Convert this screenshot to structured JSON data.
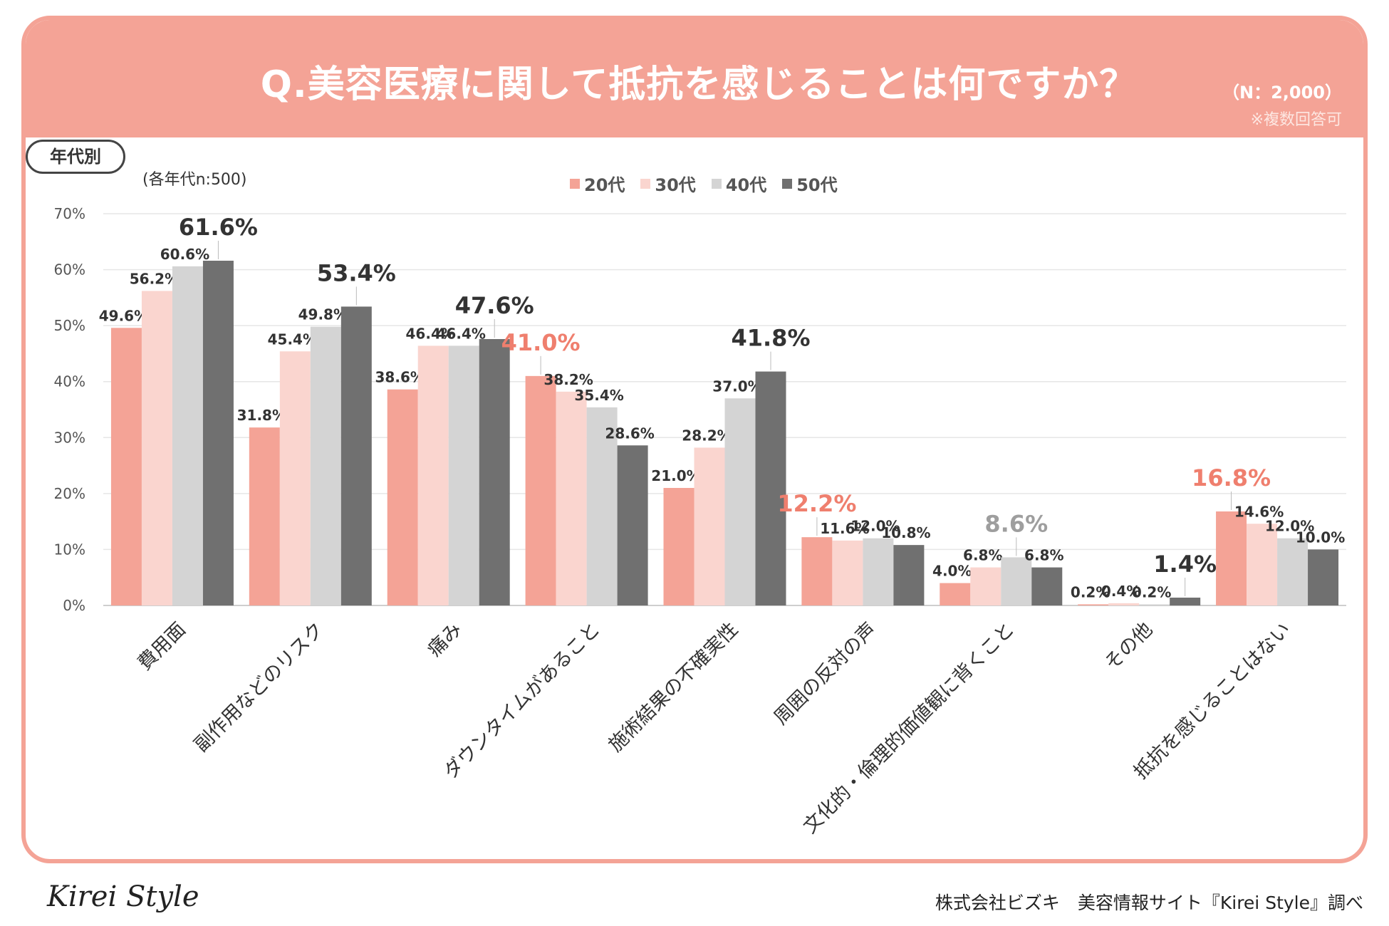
{
  "header": {
    "title": "Q.美容医療に関して抵抗を感じることは何ですか？",
    "sample": "（N：2,000）",
    "note": "※複数回答可"
  },
  "filter": {
    "label": "年代別",
    "sample_note": "(各年代n:500)"
  },
  "colors": {
    "header_bg": "#f4a396",
    "s20": "#f4a396",
    "s30": "#fad5cf",
    "s40": "#d4d4d4",
    "s50": "#707070",
    "highlight": "#ef7f6e"
  },
  "footer": {
    "logo": "Kirei Style",
    "credit": "株式会社ビズキ　美容情報サイト『Kirei Style』調べ"
  },
  "chart_data": {
    "type": "bar",
    "title": "Q.美容医療に関して抵抗を感じることは何ですか？",
    "ylim": [
      0,
      70
    ],
    "yticks": [
      "0%",
      "10%",
      "20%",
      "30%",
      "40%",
      "50%",
      "60%",
      "70%"
    ],
    "categories": [
      "費用面",
      "副作用などのリスク",
      "痛み",
      "ダウンタイムがあること",
      "施術結果の不確実性",
      "周囲の反対の声",
      "文化的・倫理的価値観に背くこと",
      "その他",
      "抵抗を感じることはない"
    ],
    "series": [
      {
        "name": "20代",
        "values": [
          49.6,
          31.8,
          38.6,
          41.0,
          21.0,
          12.2,
          4.0,
          0.2,
          16.8
        ],
        "labels": [
          "49.6%",
          "31.8%",
          "38.6%",
          "41.0%",
          "21.0%",
          "12.2%",
          "4.0%",
          "0.2%",
          "16.8%"
        ]
      },
      {
        "name": "30代",
        "values": [
          56.2,
          45.4,
          46.4,
          38.2,
          28.2,
          11.6,
          6.8,
          0.4,
          14.6
        ],
        "labels": [
          "56.2%",
          "45.4%",
          "46.4%",
          "38.2%",
          "28.2%",
          "11.6%",
          "6.8%",
          "0.4%",
          "14.6%"
        ]
      },
      {
        "name": "40代",
        "values": [
          60.6,
          49.8,
          46.4,
          35.4,
          37.0,
          12.0,
          8.6,
          0.2,
          12.0
        ],
        "labels": [
          "60.6%",
          "49.8%",
          "46.4%",
          "35.4%",
          "37.0%",
          "12.0%",
          "8.6%",
          "0.2%",
          "12.0%"
        ]
      },
      {
        "name": "50代",
        "values": [
          61.6,
          53.4,
          47.6,
          28.6,
          41.8,
          10.8,
          6.8,
          1.4,
          10.0
        ],
        "labels": [
          "61.6%",
          "53.4%",
          "47.6%",
          "28.6%",
          "41.8%",
          "10.8%",
          "6.8%",
          "1.4%",
          "10.0%"
        ]
      }
    ],
    "highlights": [
      {
        "category": 0,
        "series": 3
      },
      {
        "category": 1,
        "series": 3
      },
      {
        "category": 2,
        "series": 3
      },
      {
        "category": 3,
        "series": 0
      },
      {
        "category": 4,
        "series": 3
      },
      {
        "category": 5,
        "series": 0
      },
      {
        "category": 6,
        "series": 2
      },
      {
        "category": 7,
        "series": 3
      },
      {
        "category": 8,
        "series": 0
      }
    ]
  }
}
